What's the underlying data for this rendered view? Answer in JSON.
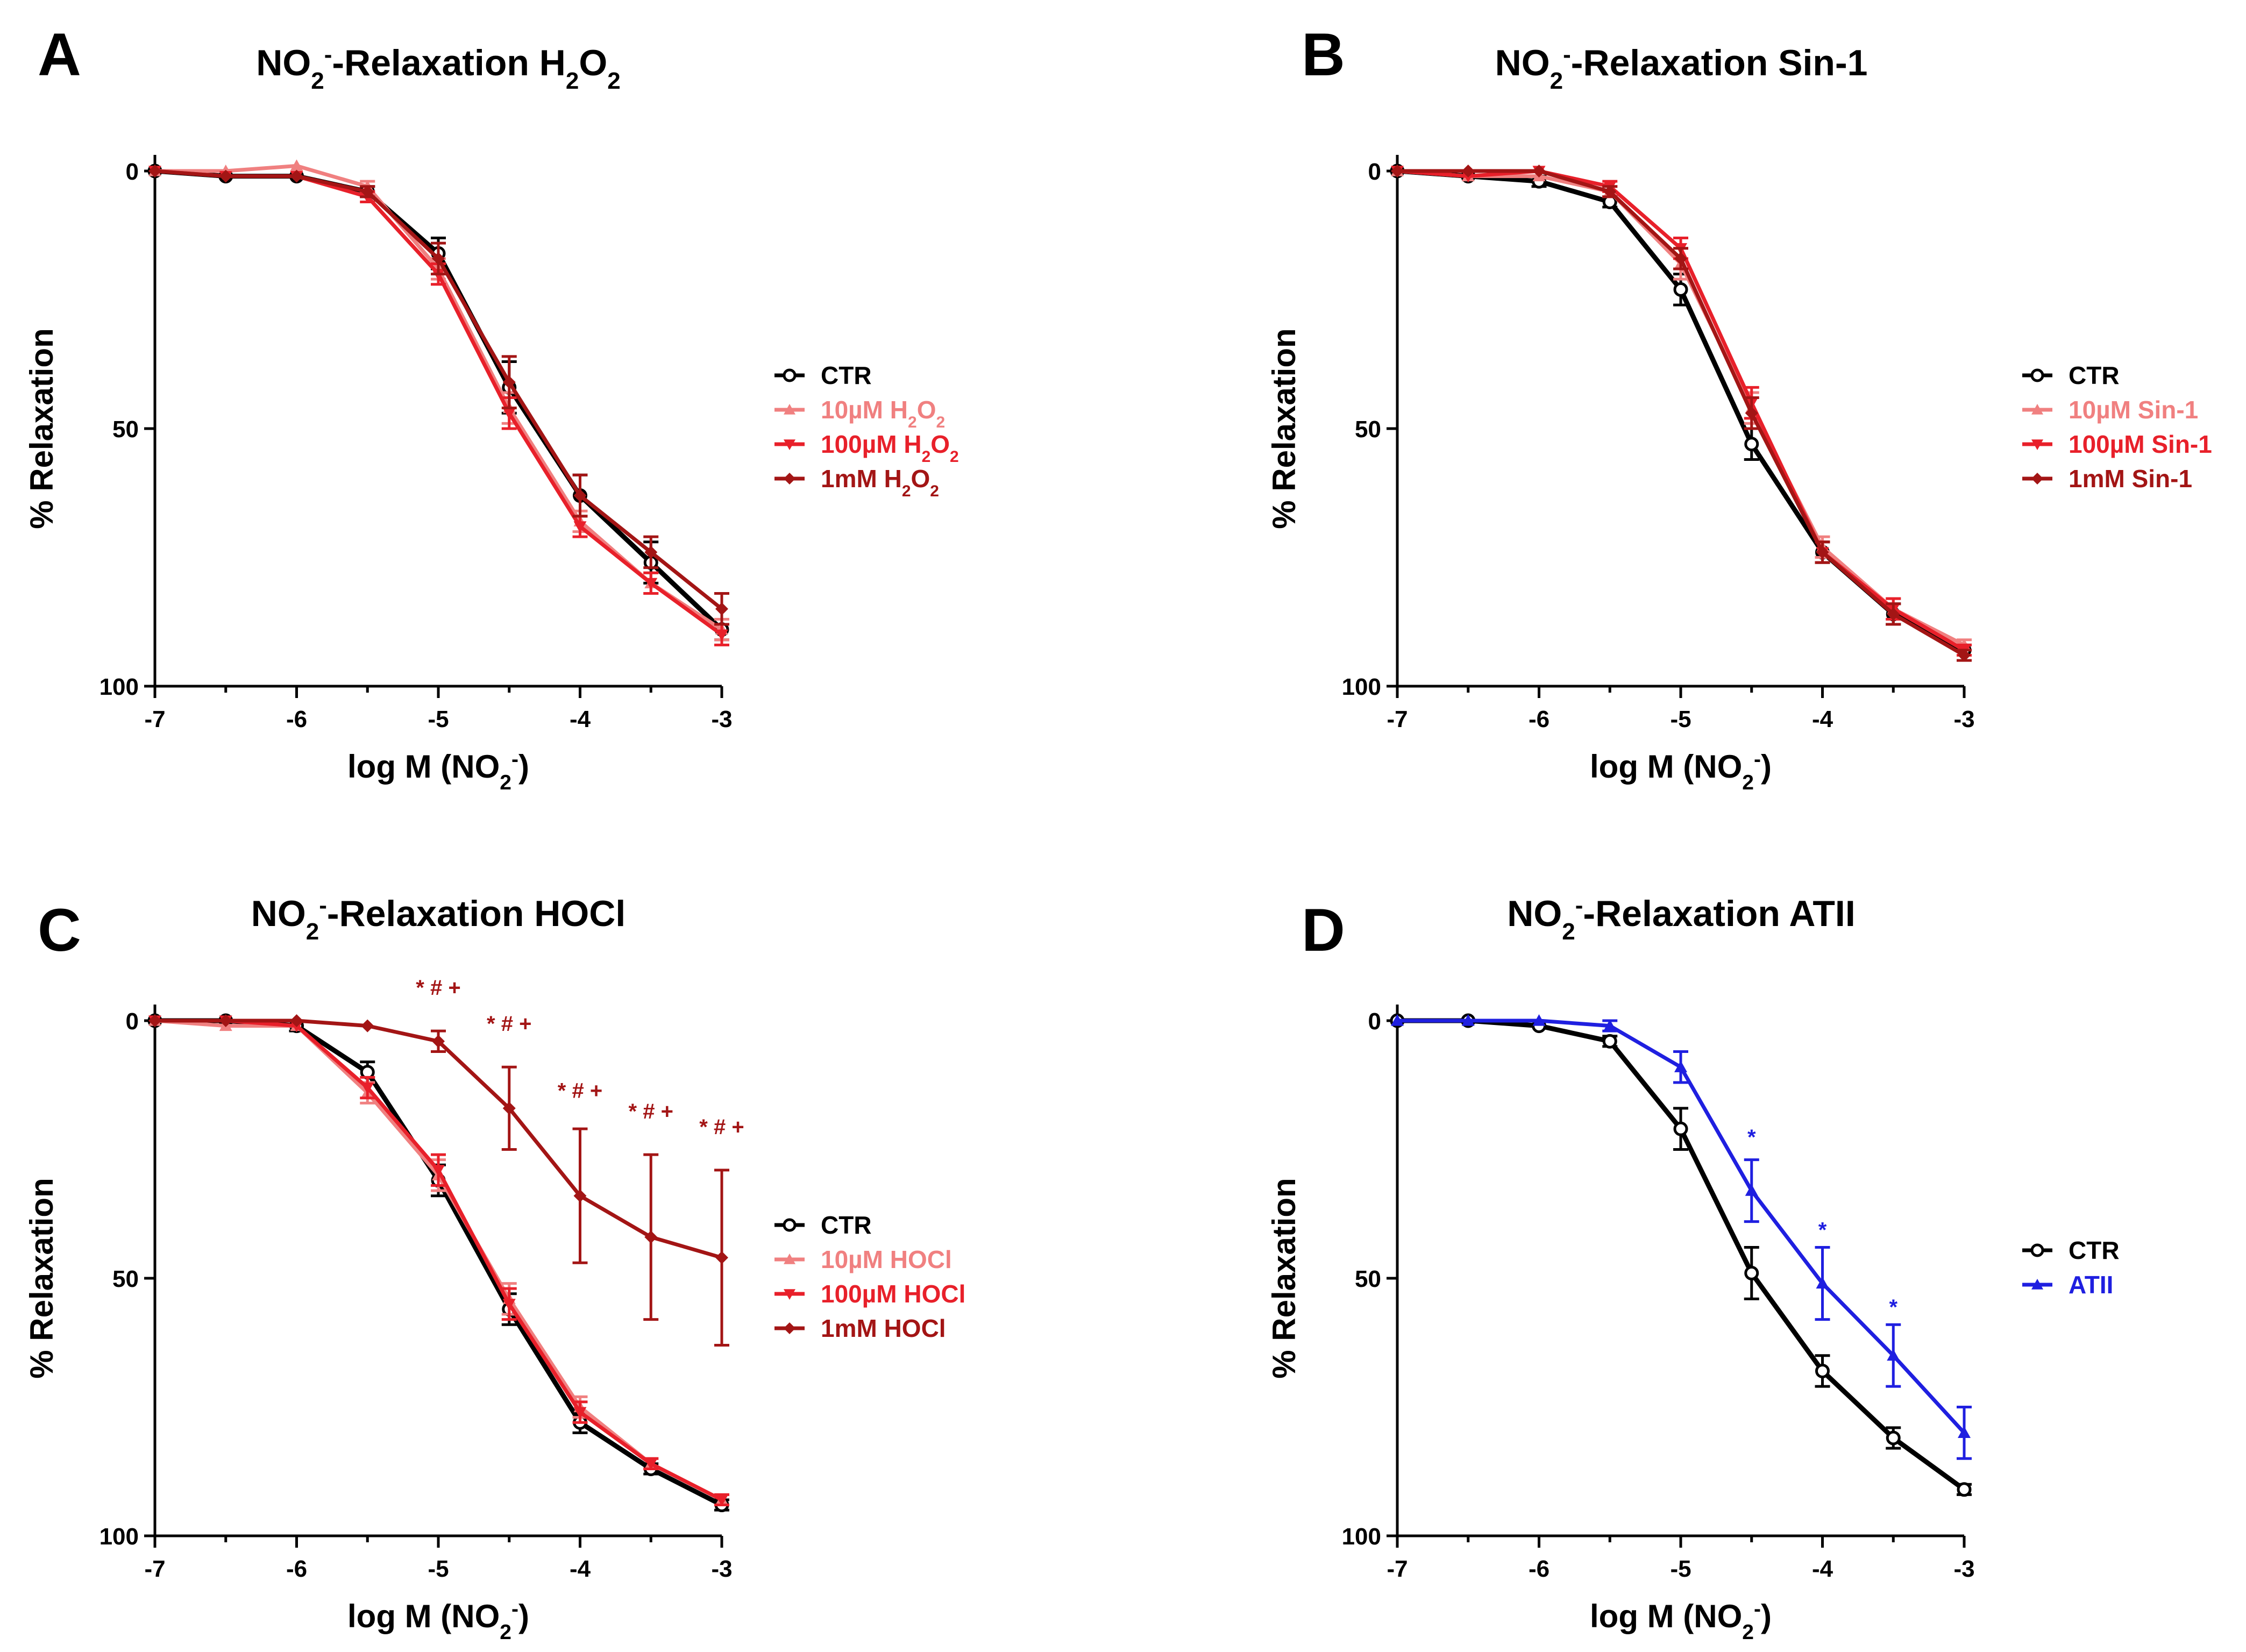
{
  "figure": {
    "x_axis_label": "log M (NO",
    "x_axis_label_sub": "2",
    "x_axis_label_sup": "-",
    "x_axis_label_end": ")",
    "y_axis_label": "% Relaxation",
    "title_prefix": "NO",
    "title_sub": "2",
    "title_sup": "-",
    "title_mid": "-Relaxation "
  },
  "colors": {
    "ctr": "#000000",
    "light_red": "#f08080",
    "red": "#e8202a",
    "dark_red": "#a31515",
    "blue": "#1f1fe0"
  },
  "chart_data": [
    {
      "panel": "A",
      "type": "line",
      "title_agent": "H",
      "title_agent_parts": [
        {
          "t": "H"
        },
        {
          "t": "2",
          "sub": true
        },
        {
          "t": "O"
        },
        {
          "t": "2",
          "sub": true
        }
      ],
      "x": [
        -7,
        -6.5,
        -6,
        -5.5,
        -5,
        -4.5,
        -4,
        -3.5,
        -3
      ],
      "xlim": [
        -7,
        -3
      ],
      "ylim": [
        0,
        100
      ],
      "y_inverted": true,
      "xticks": [
        "-7",
        "-6",
        "-5",
        "-4",
        "-3"
      ],
      "yticks": [
        "0",
        "50",
        "100"
      ],
      "series": [
        {
          "name": "CTR",
          "color_key": "ctr",
          "marker": "circle",
          "values": [
            0,
            1,
            1,
            4,
            16,
            42,
            63,
            76,
            89
          ],
          "err": [
            0,
            0,
            0,
            1,
            3,
            5,
            4,
            4,
            2
          ]
        },
        {
          "name": "10µM H2O2",
          "label_parts": [
            {
              "t": "10µM H"
            },
            {
              "t": "2",
              "sub": true
            },
            {
              "t": "O"
            },
            {
              "t": "2",
              "sub": true
            }
          ],
          "color_key": "light_red",
          "marker": "triangle-up",
          "values": [
            0,
            0,
            -1,
            3,
            19,
            46,
            68,
            80,
            89
          ],
          "err": [
            0,
            0,
            0,
            1,
            2,
            3,
            2,
            2,
            2
          ]
        },
        {
          "name": "100µM H2O2",
          "label_parts": [
            {
              "t": "100µM H"
            },
            {
              "t": "2",
              "sub": true
            },
            {
              "t": "O"
            },
            {
              "t": "2",
              "sub": true
            }
          ],
          "color_key": "red",
          "marker": "triangle-down",
          "values": [
            0,
            1,
            1,
            5,
            20,
            47,
            69,
            80,
            90
          ],
          "err": [
            0,
            0,
            0,
            1,
            2,
            3,
            2,
            2,
            2
          ]
        },
        {
          "name": "1mM H2O2",
          "label_parts": [
            {
              "t": "1mM H"
            },
            {
              "t": "2",
              "sub": true
            },
            {
              "t": "O"
            },
            {
              "t": "2",
              "sub": true
            }
          ],
          "color_key": "dark_red",
          "marker": "diamond",
          "values": [
            0,
            1,
            1,
            4,
            17,
            41,
            63,
            74,
            85
          ],
          "err": [
            0,
            0,
            0,
            1,
            3,
            5,
            4,
            3,
            3
          ]
        }
      ],
      "annotations": []
    },
    {
      "panel": "B",
      "type": "line",
      "title_agent": "Sin-1",
      "title_agent_parts": [
        {
          "t": "Sin-1"
        }
      ],
      "x": [
        -7,
        -6.5,
        -6,
        -5.5,
        -5,
        -4.5,
        -4,
        -3.5,
        -3
      ],
      "xlim": [
        -7,
        -3
      ],
      "ylim": [
        0,
        100
      ],
      "y_inverted": true,
      "xticks": [
        "-7",
        "-6",
        "-5",
        "-4",
        "-3"
      ],
      "yticks": [
        "0",
        "50",
        "100"
      ],
      "series": [
        {
          "name": "CTR",
          "label_parts": [
            {
              "t": "CTR"
            }
          ],
          "color_key": "ctr",
          "marker": "circle",
          "values": [
            0,
            1,
            2,
            6,
            23,
            53,
            74,
            86,
            93
          ],
          "err": [
            0,
            0,
            1,
            1,
            3,
            3,
            2,
            2,
            1
          ]
        },
        {
          "name": "10µM Sin-1",
          "label_parts": [
            {
              "t": "10µM Sin-1"
            }
          ],
          "color_key": "light_red",
          "marker": "triangle-up",
          "values": [
            0,
            1,
            1,
            4,
            18,
            46,
            73,
            85,
            92
          ],
          "err": [
            0,
            0,
            0,
            1,
            3,
            3,
            2,
            2,
            1
          ]
        },
        {
          "name": "100µM Sin-1",
          "label_parts": [
            {
              "t": "100µM Sin-1"
            }
          ],
          "color_key": "red",
          "marker": "triangle-down",
          "values": [
            0,
            1,
            0,
            3,
            15,
            45,
            74,
            85,
            93
          ],
          "err": [
            0,
            0,
            0,
            1,
            2,
            3,
            2,
            2,
            1
          ]
        },
        {
          "name": "1mM Sin-1",
          "label_parts": [
            {
              "t": "1mM Sin-1"
            }
          ],
          "color_key": "dark_red",
          "marker": "diamond",
          "values": [
            0,
            0,
            0,
            4,
            17,
            47,
            74,
            86,
            94
          ],
          "err": [
            0,
            0,
            0,
            1,
            2,
            3,
            2,
            2,
            1
          ]
        }
      ],
      "annotations": []
    },
    {
      "panel": "C",
      "type": "line",
      "title_agent": "HOCl",
      "title_agent_parts": [
        {
          "t": "HOCl"
        }
      ],
      "x": [
        -7,
        -6.5,
        -6,
        -5.5,
        -5,
        -4.5,
        -4,
        -3.5,
        -3
      ],
      "xlim": [
        -7,
        -3
      ],
      "ylim": [
        0,
        100
      ],
      "y_inverted": true,
      "xticks": [
        "-7",
        "-6",
        "-5",
        "-4",
        "-3"
      ],
      "yticks": [
        "0",
        "50",
        "100"
      ],
      "series": [
        {
          "name": "CTR",
          "label_parts": [
            {
              "t": "CTR"
            }
          ],
          "color_key": "ctr",
          "marker": "circle",
          "values": [
            0,
            0,
            1,
            10,
            31,
            56,
            78,
            87,
            94
          ],
          "err": [
            0,
            0,
            1,
            2,
            3,
            3,
            2,
            1,
            1
          ]
        },
        {
          "name": "10µM HOCl",
          "label_parts": [
            {
              "t": "10µM HOCl"
            }
          ],
          "color_key": "light_red",
          "marker": "triangle-up",
          "values": [
            0,
            1,
            1,
            14,
            30,
            54,
            75,
            86,
            93
          ],
          "err": [
            0,
            0,
            0,
            2,
            3,
            3,
            2,
            1,
            1
          ]
        },
        {
          "name": "100µM HOCl",
          "label_parts": [
            {
              "t": "100µM HOCl"
            }
          ],
          "color_key": "red",
          "marker": "triangle-down",
          "values": [
            0,
            0,
            1,
            13,
            29,
            55,
            76,
            86,
            93
          ],
          "err": [
            0,
            0,
            0,
            2,
            3,
            3,
            2,
            1,
            1
          ]
        },
        {
          "name": "1mM HOCl",
          "label_parts": [
            {
              "t": "1mM HOCl"
            }
          ],
          "color_key": "dark_red",
          "marker": "diamond",
          "values": [
            0,
            0,
            0,
            1,
            4,
            17,
            34,
            42,
            46
          ],
          "err": [
            0,
            0,
            0,
            0,
            2,
            8,
            13,
            16,
            17
          ]
        }
      ],
      "annotations": [
        {
          "x": -5,
          "y": -5,
          "text": "* # +",
          "color_key": "dark_red"
        },
        {
          "x": -4.5,
          "y": 2,
          "text": "* # +",
          "color_key": "dark_red"
        },
        {
          "x": -4,
          "y": 15,
          "text": "* # +",
          "color_key": "dark_red"
        },
        {
          "x": -3.5,
          "y": 19,
          "text": "* # +",
          "color_key": "dark_red"
        },
        {
          "x": -3,
          "y": 22,
          "text": "* # +",
          "color_key": "dark_red"
        }
      ]
    },
    {
      "panel": "D",
      "type": "line",
      "title_agent": "ATII",
      "title_agent_parts": [
        {
          "t": "ATII"
        }
      ],
      "x": [
        -7,
        -6.5,
        -6,
        -5.5,
        -5,
        -4.5,
        -4,
        -3.5,
        -3
      ],
      "xlim": [
        -7,
        -3
      ],
      "ylim": [
        0,
        100
      ],
      "y_inverted": true,
      "xticks": [
        "-7",
        "-6",
        "-5",
        "-4",
        "-3"
      ],
      "yticks": [
        "0",
        "50",
        "100"
      ],
      "series": [
        {
          "name": "CTR",
          "label_parts": [
            {
              "t": "CTR"
            }
          ],
          "color_key": "ctr",
          "marker": "circle",
          "values": [
            0,
            0,
            1,
            4,
            21,
            49,
            68,
            81,
            91
          ],
          "err": [
            0,
            0,
            0,
            1,
            4,
            5,
            3,
            2,
            1
          ]
        },
        {
          "name": "ATII",
          "label_parts": [
            {
              "t": "ATII"
            }
          ],
          "color_key": "blue",
          "marker": "triangle-up",
          "dashed": true,
          "values": [
            0,
            0,
            0,
            1,
            9,
            33,
            51,
            65,
            80
          ],
          "err": [
            0,
            0,
            0,
            1,
            3,
            6,
            7,
            6,
            5
          ]
        }
      ],
      "annotations": [
        {
          "x": -4.5,
          "y": 24,
          "text": "*",
          "color_key": "blue"
        },
        {
          "x": -4,
          "y": 42,
          "text": "*",
          "color_key": "blue"
        },
        {
          "x": -3.5,
          "y": 57,
          "text": "*",
          "color_key": "blue"
        }
      ]
    }
  ]
}
